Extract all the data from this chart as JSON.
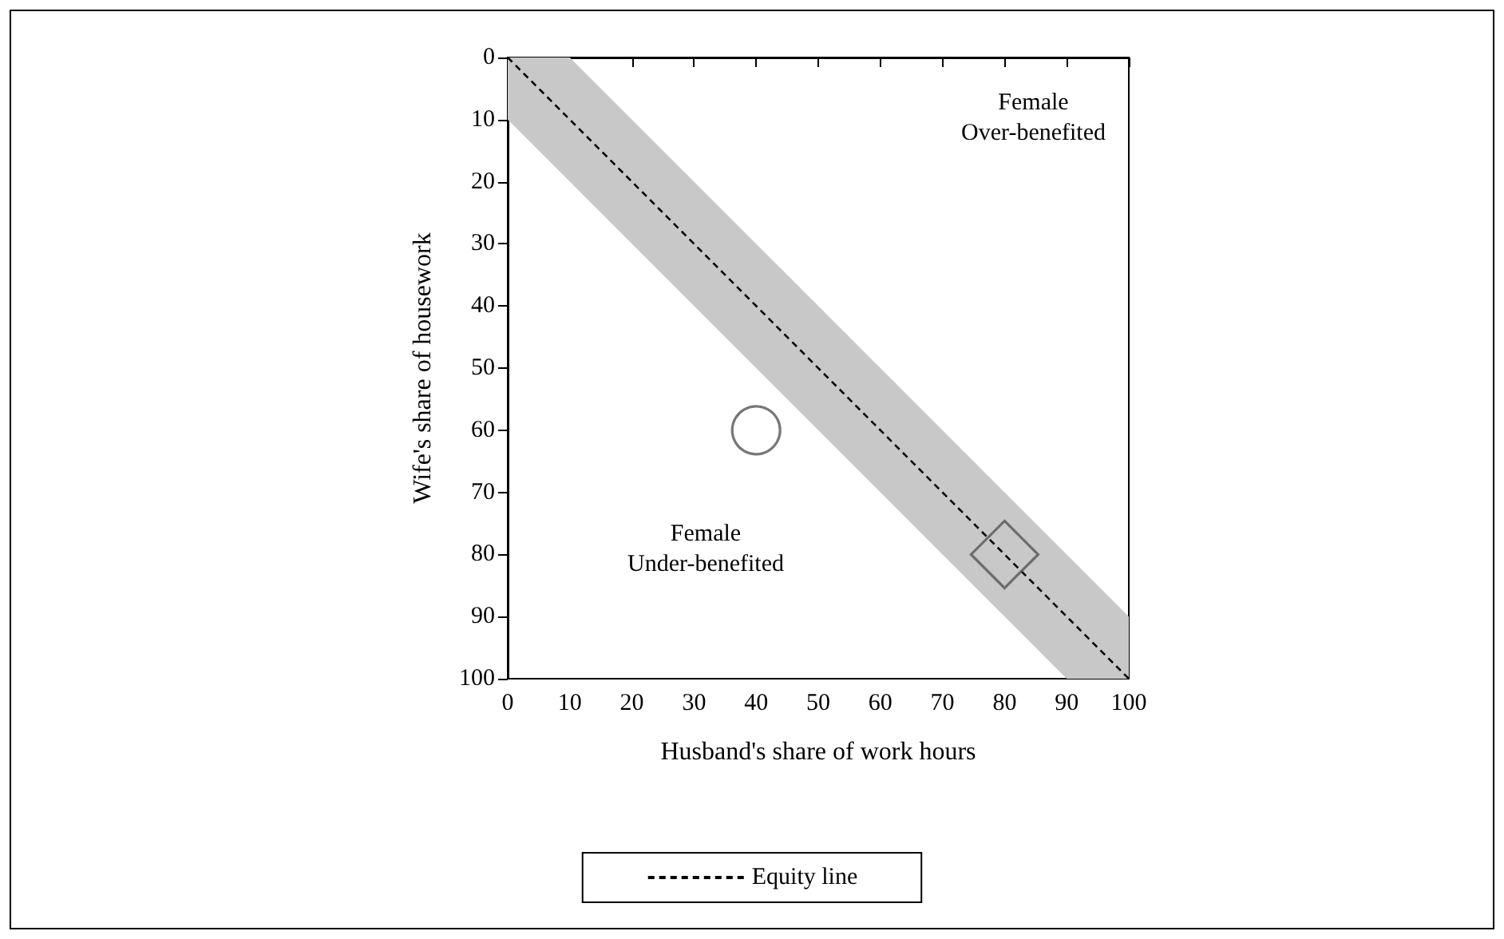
{
  "chart_data": {
    "type": "scatter",
    "xlabel": "Husband's share of work hours",
    "ylabel": "Wife's share of housework",
    "xlim": [
      0,
      100
    ],
    "xticks": [
      0,
      10,
      20,
      30,
      40,
      50,
      60,
      70,
      80,
      90,
      100
    ],
    "ylim": [
      100,
      0
    ],
    "yticks": [
      0,
      10,
      20,
      30,
      40,
      50,
      60,
      70,
      80,
      90,
      100
    ],
    "grid": false,
    "legend": "bottom",
    "annotations": [
      "Female\nOver-benefited",
      "Female\nUnder-benefited"
    ],
    "series": [
      {
        "name": "Equity line",
        "type": "line",
        "line_style": "dashed",
        "marker": "none",
        "color": "#000000",
        "x": [
          0,
          10,
          90,
          100
        ],
        "values": [
          0,
          10,
          90,
          100
        ],
        "lower": [
          0,
          0,
          80,
          90
        ],
        "upper": [
          10,
          20,
          100,
          100
        ]
      },
      {
        "marker": "circle",
        "color": "#555555",
        "x": [
          40
        ],
        "values": [
          60
        ]
      },
      {
        "marker": "diamond",
        "color": "#555555",
        "x": [
          80
        ],
        "values": [
          80
        ]
      }
    ]
  }
}
